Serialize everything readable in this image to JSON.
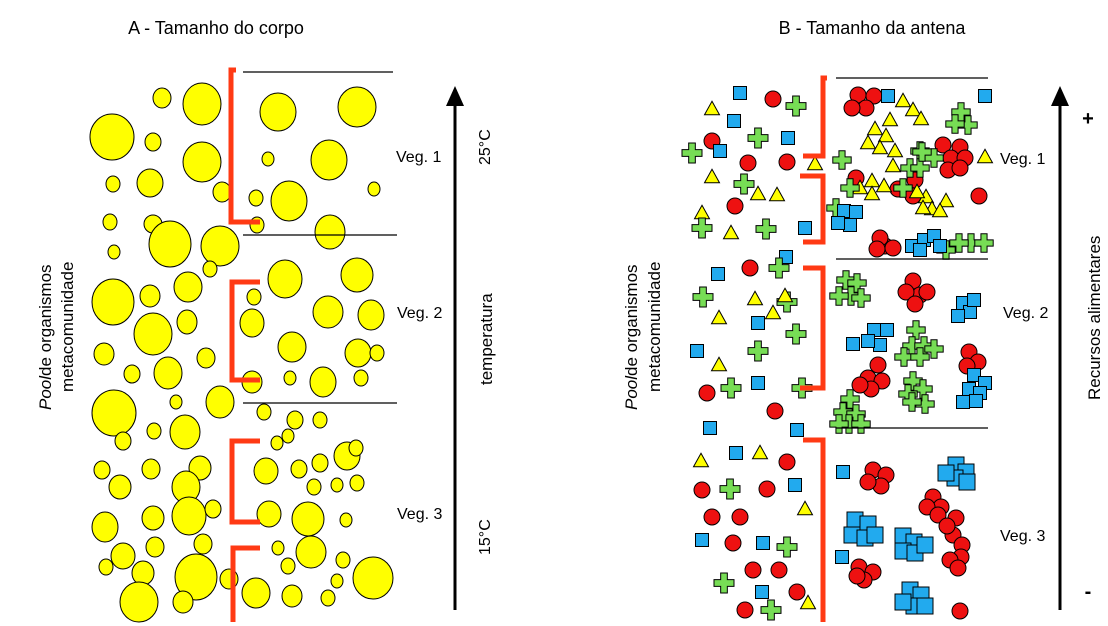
{
  "panel_a": {
    "title": "A - Tamanho  do corpo",
    "pool_label": "Pool",
    "pool_label_rest": "de organismos",
    "metacom_label": "metacomunidade",
    "veg_labels": [
      "Veg. 1",
      "Veg. 2",
      "Veg. 3"
    ],
    "axis_label": "temperatura",
    "temp_high": "25°C",
    "temp_low": "15°C"
  },
  "panel_b": {
    "title": "B - Tamanho da antena",
    "pool_label": "Pool",
    "pool_label_rest": "de organismos",
    "metacom_label": "metacomunidade",
    "veg_labels": [
      "Veg. 1",
      "Veg. 2",
      "Veg. 3"
    ],
    "axis_label": "Recursos alimentares",
    "sign_plus": "+",
    "sign_minus": "-"
  },
  "colors": {
    "circle_fill": "#ffff00",
    "barrier": "#ff3a14",
    "red": "#ee1111",
    "blue": "#22aaee",
    "green": "#77dd55",
    "yellow": "#ffff00"
  }
}
